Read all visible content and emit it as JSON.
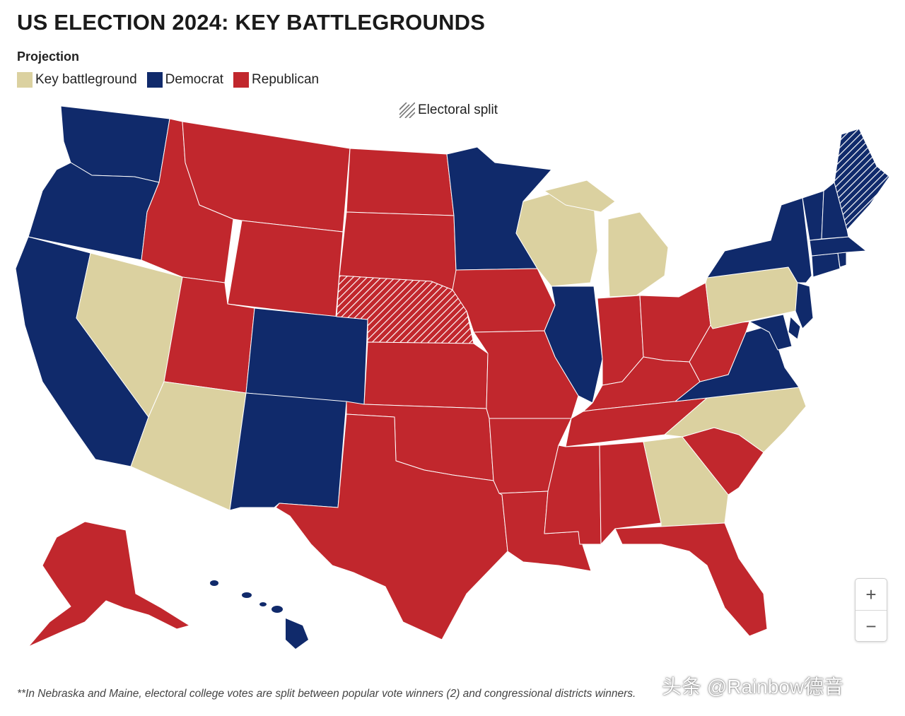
{
  "title": "US ELECTION 2024: KEY BATTLEGROUNDS",
  "legend": {
    "heading": "Projection",
    "items": [
      {
        "label": "Key battleground",
        "color": "#dbd1a0"
      },
      {
        "label": "Democrat",
        "color": "#102a6b"
      },
      {
        "label": "Republican",
        "color": "#c1272d"
      }
    ],
    "split_label": "Electoral split",
    "split_icon": "hatch-icon"
  },
  "zoom": {
    "in_label": "+",
    "out_label": "−"
  },
  "footnote": "**In Nebraska and Maine, electoral college votes are split between popular vote winners (2) and congressional districts winners.",
  "watermark": "头条 @Rainbow德音",
  "colors": {
    "battleground": "#dbd1a0",
    "democrat": "#102a6b",
    "republican": "#c1272d",
    "split_hatch": "#ffffff"
  },
  "states": {
    "democrat": [
      "WA",
      "OR",
      "CA",
      "CO",
      "NM",
      "MN",
      "IL",
      "VA",
      "NY",
      "VT",
      "NH",
      "MA",
      "CT",
      "RI",
      "NJ",
      "DE",
      "MD",
      "HI",
      "ME"
    ],
    "republican": [
      "ID",
      "MT",
      "WY",
      "UT",
      "ND",
      "SD",
      "KS",
      "OK",
      "TX",
      "IA",
      "MO",
      "AR",
      "LA",
      "MS",
      "AL",
      "TN",
      "KY",
      "IN",
      "OH",
      "WV",
      "SC",
      "FL",
      "AK"
    ],
    "battleground": [
      "NV",
      "AZ",
      "WI",
      "MI",
      "PA",
      "NC",
      "GA"
    ],
    "electoral_split": [
      "NE",
      "ME"
    ]
  }
}
